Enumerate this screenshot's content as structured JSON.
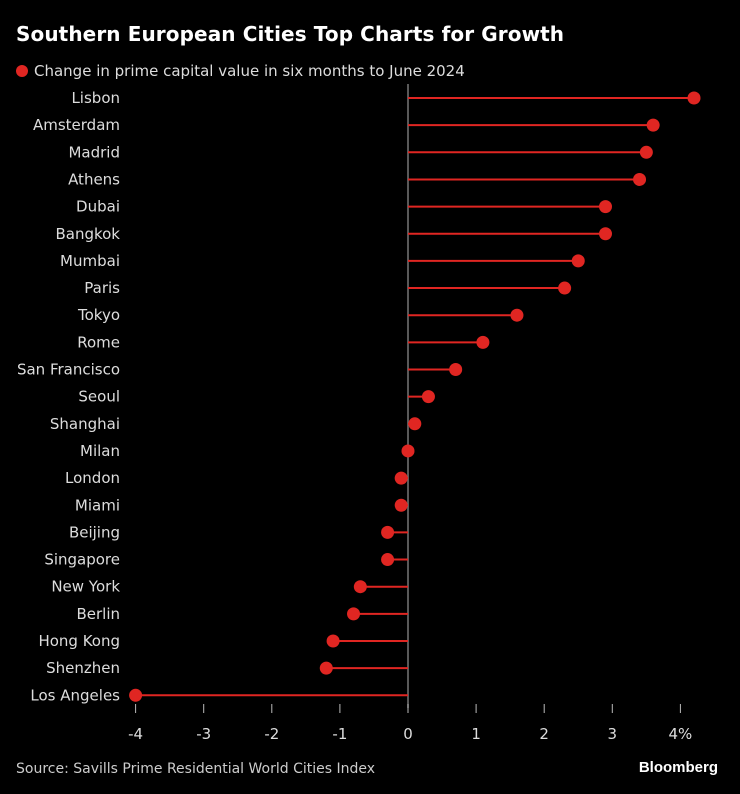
{
  "chart_data": {
    "type": "lollipop-bar",
    "title": "Southern European Cities Top Charts for Growth",
    "legend": [
      {
        "label": "Change in prime capital value in six months to June 2024",
        "color": "#e02622"
      }
    ],
    "legend_position": "top-left",
    "categories": [
      "Lisbon",
      "Amsterdam",
      "Madrid",
      "Athens",
      "Dubai",
      "Bangkok",
      "Mumbai",
      "Paris",
      "Tokyo",
      "Rome",
      "San Francisco",
      "Seoul",
      "Shanghai",
      "Milan",
      "London",
      "Miami",
      "Beijing",
      "Singapore",
      "New York",
      "Berlin",
      "Hong Kong",
      "Shenzhen",
      "Los Angeles"
    ],
    "values": [
      4.2,
      3.6,
      3.5,
      3.4,
      2.9,
      2.9,
      2.5,
      2.3,
      1.6,
      1.1,
      0.7,
      0.3,
      0.1,
      0.0,
      -0.1,
      -0.1,
      -0.3,
      -0.3,
      -0.7,
      -0.8,
      -1.1,
      -1.2,
      -4.0
    ],
    "xlim": [
      -4,
      4.2
    ],
    "xticks": [
      -4,
      -3,
      -2,
      -1,
      0,
      1,
      2,
      3,
      4
    ],
    "xtick_labels": [
      "-4",
      "-3",
      "-2",
      "-1",
      "0",
      "1",
      "2",
      "3",
      "4%"
    ],
    "xlabel": "",
    "ylabel": "",
    "grid": false,
    "color": "#e02622"
  },
  "source": "Source: Savills Prime Residential World Cities Index",
  "brand": "Bloomberg"
}
